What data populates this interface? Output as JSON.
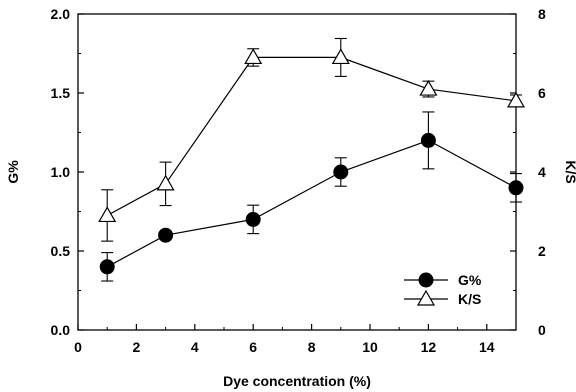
{
  "chart_data": {
    "type": "line",
    "xlabel": "Dye concentration (%)",
    "ylabel": "G%",
    "y2label": "K/S",
    "xlim": [
      0,
      15
    ],
    "ylim": [
      0.0,
      2.0
    ],
    "y2lim": [
      0,
      8
    ],
    "xticks": [
      "0",
      "2",
      "4",
      "6",
      "8",
      "10",
      "12",
      "14"
    ],
    "yticks": [
      "0.0",
      "0.5",
      "1.0",
      "1.5",
      "2.0"
    ],
    "y2ticks": [
      "0",
      "2",
      "4",
      "6",
      "8"
    ],
    "grid": false,
    "legend_position": "bottom-right",
    "series": [
      {
        "name": "G%",
        "axis": "left",
        "marker": "filled-circle",
        "color": "#000000",
        "x": [
          1,
          3,
          6,
          9,
          12,
          15
        ],
        "values": [
          0.4,
          0.6,
          0.7,
          1.0,
          1.2,
          0.9
        ],
        "error": [
          0.09,
          0.0,
          0.09,
          0.09,
          0.18,
          0.09
        ]
      },
      {
        "name": "K/S",
        "axis": "right",
        "marker": "open-triangle",
        "color": "#000000",
        "x": [
          1,
          3,
          6,
          9,
          12,
          15
        ],
        "values": [
          2.9,
          3.7,
          6.9,
          6.9,
          6.1,
          5.8
        ],
        "error": [
          0.65,
          0.55,
          0.22,
          0.48,
          0.2,
          0.15
        ]
      }
    ]
  }
}
